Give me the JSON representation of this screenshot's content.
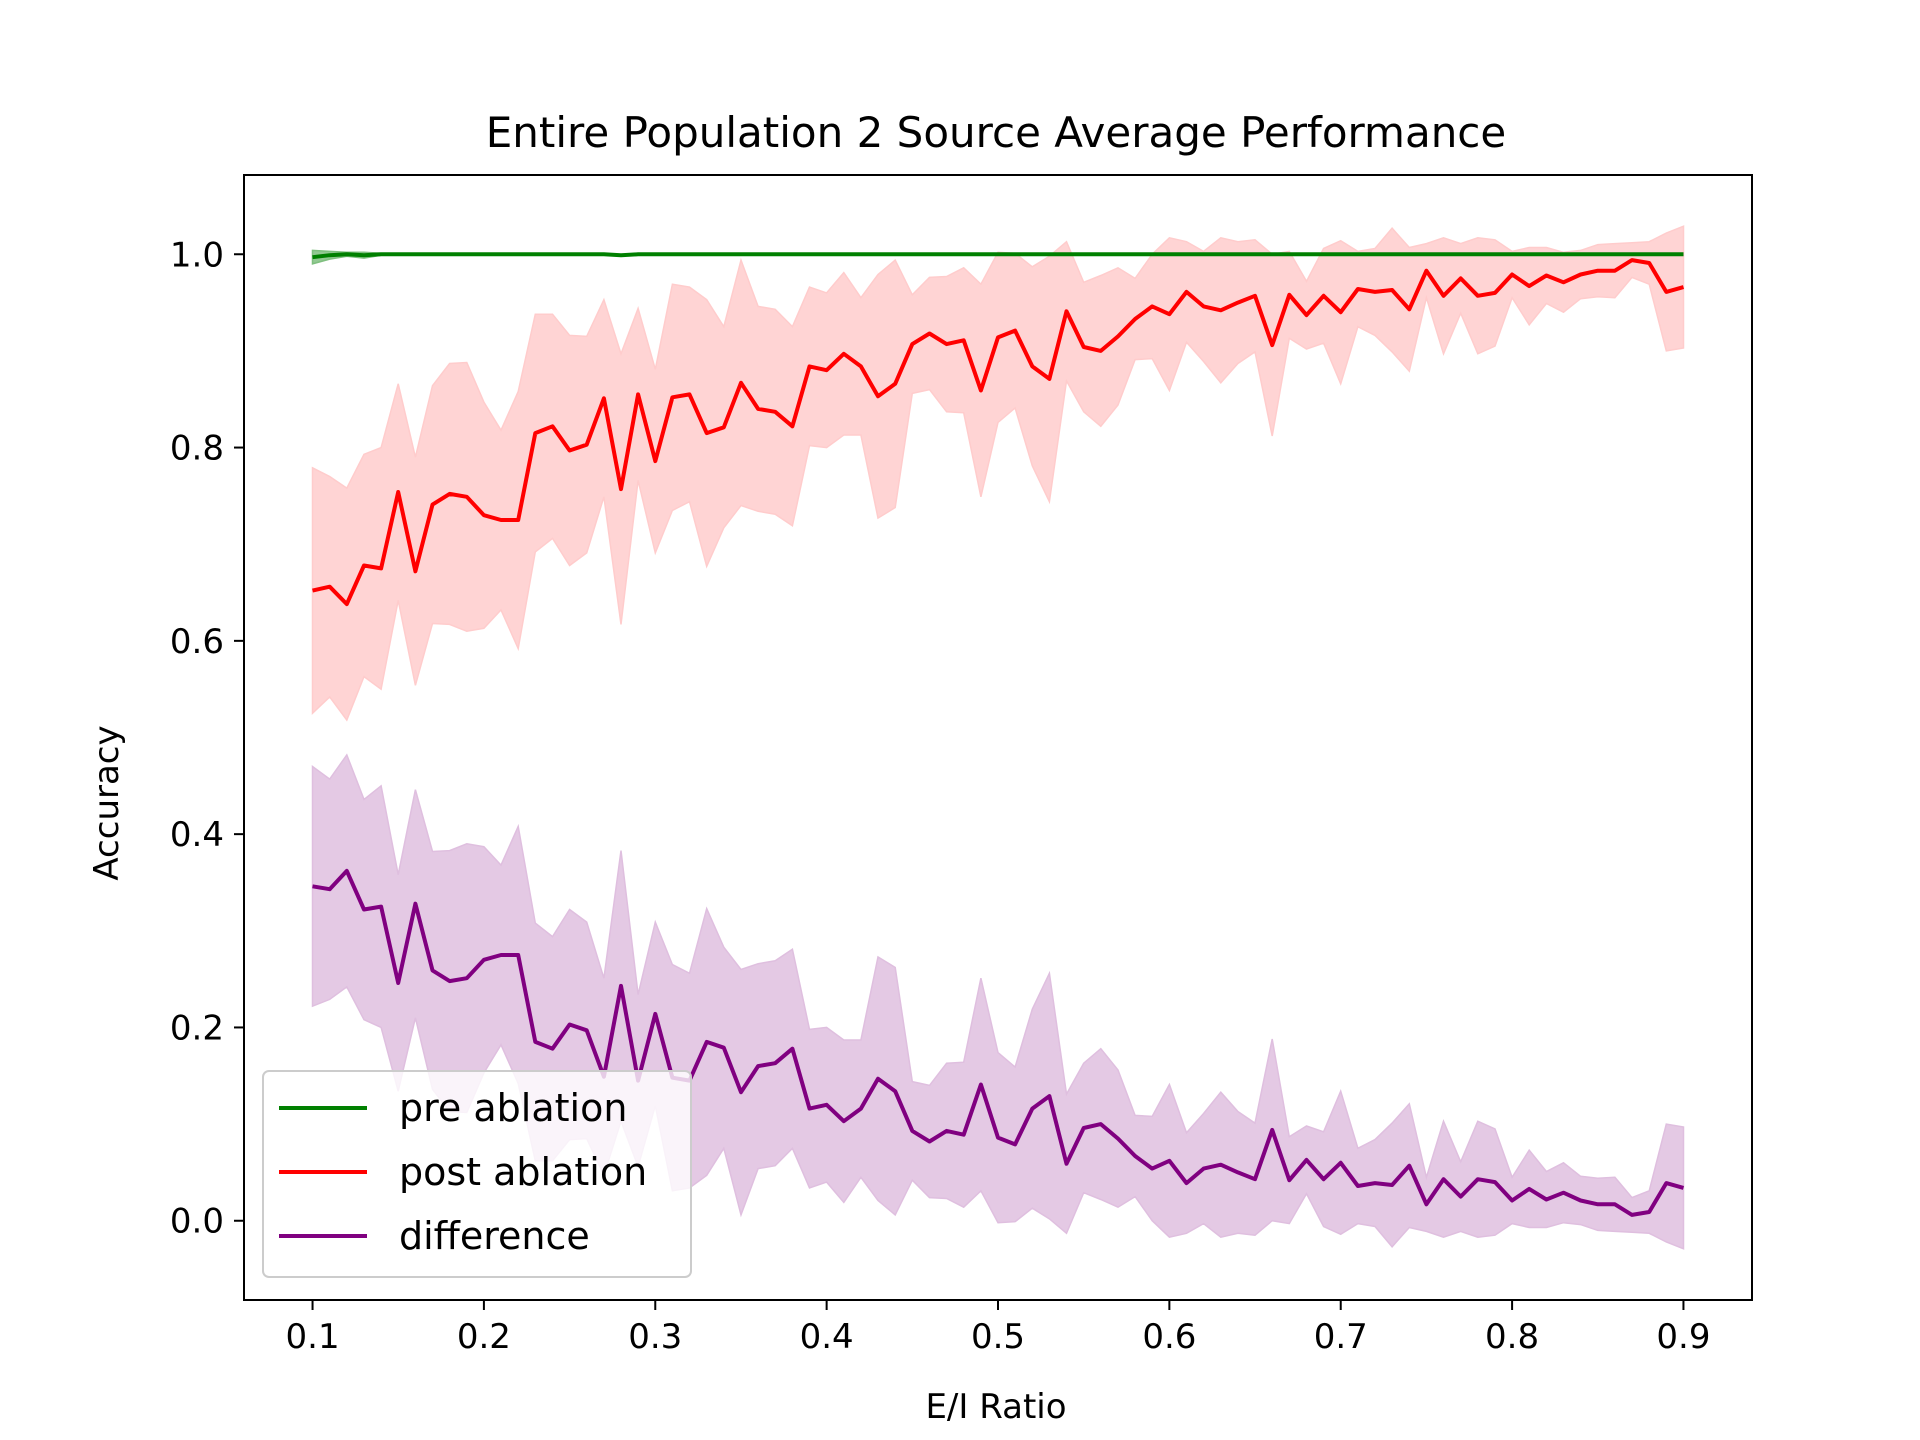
{
  "chart_data": {
    "type": "line",
    "title": "Entire Population 2 Source Average Performance",
    "xlabel": "E/I Ratio",
    "ylabel": "Accuracy",
    "xlim": [
      0.06,
      0.94
    ],
    "ylim": [
      -0.082,
      1.082
    ],
    "xticks": [
      0.1,
      0.2,
      0.3,
      0.4,
      0.5,
      0.6,
      0.7,
      0.8,
      0.9
    ],
    "xtick_labels": [
      "0.1",
      "0.2",
      "0.3",
      "0.4",
      "0.5",
      "0.6",
      "0.7",
      "0.8",
      "0.9"
    ],
    "yticks": [
      0.0,
      0.2,
      0.4,
      0.6,
      0.8,
      1.0
    ],
    "ytick_labels": [
      "0.0",
      "0.2",
      "0.4",
      "0.6",
      "0.8",
      "1.0"
    ],
    "grid": false,
    "legend_position": "lower-left",
    "x": [
      0.1,
      0.11,
      0.12,
      0.13,
      0.14,
      0.15,
      0.16,
      0.17,
      0.18,
      0.19,
      0.2,
      0.21,
      0.22,
      0.23,
      0.24,
      0.25,
      0.26,
      0.27,
      0.28,
      0.29,
      0.3,
      0.31,
      0.32,
      0.33,
      0.34,
      0.35,
      0.36,
      0.37,
      0.38,
      0.39,
      0.4,
      0.41,
      0.42,
      0.43,
      0.44,
      0.45,
      0.46,
      0.47,
      0.48,
      0.49,
      0.5,
      0.51,
      0.52,
      0.53,
      0.54,
      0.55,
      0.56,
      0.57,
      0.58,
      0.59,
      0.6,
      0.61,
      0.62,
      0.63,
      0.64,
      0.65,
      0.66,
      0.67,
      0.68,
      0.69,
      0.7,
      0.71,
      0.72,
      0.73,
      0.74,
      0.75,
      0.76,
      0.77,
      0.78,
      0.79,
      0.8,
      0.81,
      0.82,
      0.83,
      0.84,
      0.85,
      0.86,
      0.87,
      0.88,
      0.89,
      0.9
    ],
    "series": [
      {
        "name": "pre ablation",
        "color": "#008000",
        "band_color": "#7fbf7f",
        "values": [
          0.997,
          0.999,
          1.0,
          0.999,
          1.0,
          1.0,
          1.0,
          1.0,
          1.0,
          1.0,
          1.0,
          1.0,
          1.0,
          1.0,
          1.0,
          1.0,
          1.0,
          1.0,
          0.999,
          1.0,
          1.0,
          1.0,
          1.0,
          1.0,
          1.0,
          1.0,
          1.0,
          1.0,
          1.0,
          1.0,
          1.0,
          1.0,
          1.0,
          1.0,
          1.0,
          1.0,
          1.0,
          1.0,
          1.0,
          1.0,
          1.0,
          1.0,
          1.0,
          1.0,
          1.0,
          1.0,
          1.0,
          1.0,
          1.0,
          1.0,
          1.0,
          1.0,
          1.0,
          1.0,
          1.0,
          1.0,
          1.0,
          1.0,
          1.0,
          1.0,
          1.0,
          1.0,
          1.0,
          1.0,
          1.0,
          1.0,
          1.0,
          1.0,
          1.0,
          1.0,
          1.0,
          1.0,
          1.0,
          1.0,
          1.0,
          1.0,
          1.0,
          1.0,
          1.0,
          1.0,
          1.0
        ],
        "band": [
          0.007,
          0.004,
          0.002,
          0.003,
          0.001,
          0.001,
          0.0,
          0.0,
          0.0,
          0.0,
          0.0,
          0.0,
          0.0,
          0.0,
          0.0,
          0.0,
          0.0,
          0.0,
          0.001,
          0.0,
          0.0,
          0.0,
          0.0,
          0.0,
          0.0,
          0.0,
          0.0,
          0.0,
          0.0,
          0.0,
          0.0,
          0.0,
          0.0,
          0.0,
          0.0,
          0.0,
          0.0,
          0.0,
          0.0,
          0.0,
          0.0,
          0.0,
          0.0,
          0.0,
          0.0,
          0.0,
          0.0,
          0.0,
          0.0,
          0.0,
          0.0,
          0.0,
          0.0,
          0.0,
          0.0,
          0.0,
          0.0,
          0.0,
          0.0,
          0.0,
          0.0,
          0.0,
          0.0,
          0.0,
          0.0,
          0.0,
          0.0,
          0.0,
          0.0,
          0.0,
          0.0,
          0.0,
          0.0,
          0.0,
          0.0,
          0.0,
          0.0,
          0.0,
          0.0,
          0.0,
          0.0
        ]
      },
      {
        "name": "post ablation",
        "color": "#ff0000",
        "band_color": "#ffcccc",
        "values": [
          0.652,
          0.656,
          0.638,
          0.678,
          0.675,
          0.754,
          0.672,
          0.741,
          0.752,
          0.749,
          0.73,
          0.725,
          0.725,
          0.815,
          0.822,
          0.797,
          0.803,
          0.851,
          0.757,
          0.855,
          0.786,
          0.852,
          0.855,
          0.815,
          0.821,
          0.867,
          0.84,
          0.837,
          0.822,
          0.884,
          0.88,
          0.897,
          0.884,
          0.853,
          0.866,
          0.907,
          0.918,
          0.907,
          0.911,
          0.859,
          0.914,
          0.921,
          0.884,
          0.871,
          0.941,
          0.904,
          0.9,
          0.915,
          0.933,
          0.946,
          0.938,
          0.961,
          0.946,
          0.942,
          0.95,
          0.957,
          0.906,
          0.958,
          0.937,
          0.957,
          0.94,
          0.964,
          0.961,
          0.963,
          0.943,
          0.983,
          0.957,
          0.975,
          0.957,
          0.96,
          0.979,
          0.967,
          0.978,
          0.971,
          0.979,
          0.983,
          0.983,
          0.994,
          0.991,
          0.961,
          0.966
        ],
        "band": [
          0.127,
          0.114,
          0.12,
          0.115,
          0.125,
          0.112,
          0.118,
          0.123,
          0.135,
          0.139,
          0.117,
          0.093,
          0.133,
          0.123,
          0.116,
          0.119,
          0.112,
          0.102,
          0.14,
          0.089,
          0.095,
          0.117,
          0.111,
          0.138,
          0.104,
          0.127,
          0.106,
          0.106,
          0.103,
          0.082,
          0.08,
          0.084,
          0.071,
          0.126,
          0.128,
          0.051,
          0.058,
          0.07,
          0.075,
          0.11,
          0.088,
          0.08,
          0.103,
          0.127,
          0.072,
          0.067,
          0.078,
          0.071,
          0.042,
          0.054,
          0.079,
          0.052,
          0.057,
          0.075,
          0.063,
          0.058,
          0.094,
          0.045,
          0.035,
          0.049,
          0.074,
          0.039,
          0.045,
          0.064,
          0.064,
          0.028,
          0.06,
          0.036,
          0.06,
          0.055,
          0.024,
          0.04,
          0.029,
          0.031,
          0.025,
          0.027,
          0.028,
          0.018,
          0.022,
          0.061,
          0.063
        ]
      },
      {
        "name": "difference",
        "color": "#800080",
        "band_color": "#dfbfdf",
        "values": [
          0.346,
          0.343,
          0.362,
          0.322,
          0.325,
          0.246,
          0.328,
          0.259,
          0.248,
          0.251,
          0.27,
          0.275,
          0.275,
          0.185,
          0.178,
          0.203,
          0.197,
          0.149,
          0.243,
          0.145,
          0.214,
          0.148,
          0.145,
          0.185,
          0.179,
          0.133,
          0.16,
          0.163,
          0.178,
          0.116,
          0.12,
          0.103,
          0.116,
          0.147,
          0.134,
          0.093,
          0.082,
          0.093,
          0.089,
          0.141,
          0.086,
          0.079,
          0.116,
          0.129,
          0.059,
          0.096,
          0.1,
          0.085,
          0.067,
          0.054,
          0.062,
          0.039,
          0.054,
          0.058,
          0.05,
          0.043,
          0.094,
          0.042,
          0.063,
          0.043,
          0.06,
          0.036,
          0.039,
          0.037,
          0.057,
          0.017,
          0.043,
          0.025,
          0.043,
          0.04,
          0.021,
          0.033,
          0.022,
          0.029,
          0.021,
          0.017,
          0.017,
          0.006,
          0.009,
          0.039,
          0.034
        ],
        "band": [
          0.124,
          0.114,
          0.12,
          0.114,
          0.125,
          0.112,
          0.118,
          0.123,
          0.135,
          0.139,
          0.117,
          0.093,
          0.133,
          0.123,
          0.116,
          0.119,
          0.112,
          0.102,
          0.14,
          0.089,
          0.095,
          0.117,
          0.111,
          0.138,
          0.104,
          0.127,
          0.106,
          0.106,
          0.103,
          0.082,
          0.08,
          0.084,
          0.071,
          0.126,
          0.128,
          0.051,
          0.058,
          0.07,
          0.075,
          0.11,
          0.088,
          0.08,
          0.103,
          0.127,
          0.072,
          0.067,
          0.078,
          0.071,
          0.042,
          0.054,
          0.079,
          0.052,
          0.057,
          0.075,
          0.063,
          0.058,
          0.094,
          0.045,
          0.035,
          0.049,
          0.074,
          0.039,
          0.045,
          0.064,
          0.064,
          0.028,
          0.06,
          0.036,
          0.06,
          0.055,
          0.024,
          0.04,
          0.029,
          0.031,
          0.025,
          0.027,
          0.028,
          0.018,
          0.022,
          0.061,
          0.063
        ]
      }
    ]
  }
}
